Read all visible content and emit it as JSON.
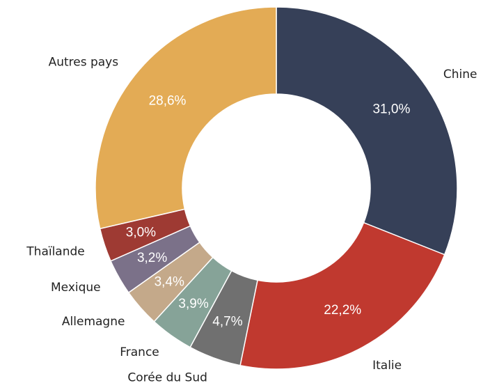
{
  "chart_data": {
    "type": "donut",
    "categories": [
      "Chine",
      "Italie",
      "Corée du Sud",
      "France",
      "Allemagne",
      "Mexique",
      "Thaïlande",
      "Autres pays"
    ],
    "values": [
      31.0,
      22.2,
      4.7,
      3.9,
      3.4,
      3.2,
      3.0,
      28.6
    ],
    "value_labels": [
      "31,0%",
      "22,2%",
      "4,7%",
      "3,9%",
      "3,4%",
      "3,2%",
      "3,0%",
      "28,6%"
    ],
    "colors": [
      "#364058",
      "#c0392f",
      "#707070",
      "#86a398",
      "#c4a98a",
      "#7b7189",
      "#9e3a33",
      "#e3ab55"
    ]
  }
}
